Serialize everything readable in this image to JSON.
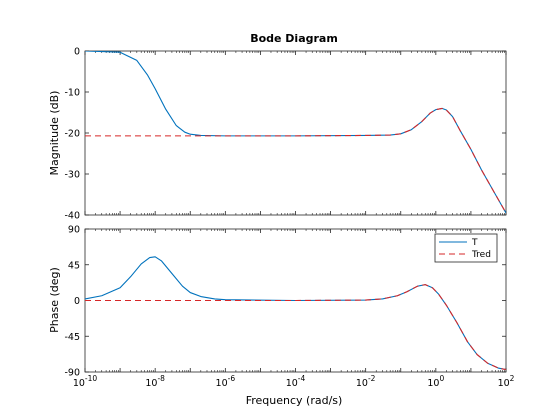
{
  "chart_data": {
    "type": "line",
    "title": "Bode Diagram",
    "xlabel": "Frequency  (rad/s)",
    "xscale": "log",
    "xlim": [
      1e-10,
      100
    ],
    "xtick_labels": [
      {
        "base": "10",
        "exp": "-10"
      },
      {
        "base": "10",
        "exp": "-8"
      },
      {
        "base": "10",
        "exp": "-6"
      },
      {
        "base": "10",
        "exp": "-4"
      },
      {
        "base": "10",
        "exp": "-2"
      },
      {
        "base": "10",
        "exp": "0"
      },
      {
        "base": "10",
        "exp": "2"
      }
    ],
    "legend": {
      "location": "top-right",
      "entries": [
        "T",
        "Tred"
      ]
    },
    "colors": {
      "T": "#0072bd",
      "Tred": "#d62728"
    },
    "panels": [
      {
        "name": "magnitude",
        "ylabel": "Magnitude (dB)",
        "ylim": [
          -40,
          0
        ],
        "yticks": [
          0,
          -10,
          -20,
          -30,
          -40
        ],
        "series": [
          {
            "name": "T",
            "style": "solid",
            "x": [
              1e-10,
              1e-09,
              3e-09,
              6e-09,
              1e-08,
              2e-08,
              4e-08,
              7e-08,
              1e-07,
              2e-07,
              1e-06,
              0.0001,
              0.01,
              0.05,
              0.1,
              0.2,
              0.4,
              0.7,
              1,
              1.5,
              2,
              3,
              5,
              10,
              20,
              50,
              100
            ],
            "y": [
              0,
              -0.3,
              -2.3,
              -5.8,
              -9.2,
              -14.2,
              -18.2,
              -19.8,
              -20.3,
              -20.6,
              -20.7,
              -20.7,
              -20.6,
              -20.5,
              -20.2,
              -19.2,
              -17.2,
              -15.1,
              -14.3,
              -14.0,
              -14.4,
              -16.0,
              -19.5,
              -24.0,
              -29.0,
              -35.0,
              -39.5
            ]
          },
          {
            "name": "Tred",
            "style": "dashed",
            "x": [
              1e-10,
              1e-08,
              1e-06,
              0.0001,
              0.01,
              0.05,
              0.1,
              0.2,
              0.4,
              0.7,
              1,
              1.5,
              2,
              3,
              5,
              10,
              20,
              50,
              100
            ],
            "y": [
              -20.7,
              -20.7,
              -20.7,
              -20.7,
              -20.6,
              -20.5,
              -20.2,
              -19.2,
              -17.2,
              -15.1,
              -14.3,
              -14.0,
              -14.4,
              -16.0,
              -19.5,
              -24.0,
              -29.0,
              -35.0,
              -39.5
            ]
          }
        ]
      },
      {
        "name": "phase",
        "ylabel": "Phase (deg)",
        "ylim": [
          -90,
          90
        ],
        "yticks": [
          90,
          45,
          0,
          -45,
          -90
        ],
        "series": [
          {
            "name": "T",
            "style": "solid",
            "x": [
              1e-10,
              3e-10,
              1e-09,
              2e-09,
              4e-09,
              7e-09,
              1e-08,
              1.5e-08,
              3e-08,
              6e-08,
              1e-07,
              2e-07,
              5e-07,
              1e-06,
              0.0001,
              0.01,
              0.03,
              0.08,
              0.15,
              0.3,
              0.5,
              0.8,
              1.2,
              2,
              4,
              8,
              15,
              30,
              60,
              100
            ],
            "y": [
              2,
              6,
              16,
              30,
              46,
              54,
              55,
              50,
              34,
              18,
              10,
              5,
              2,
              1,
              0,
              0.5,
              2,
              6,
              11,
              18,
              20,
              16,
              8,
              -6,
              -28,
              -52,
              -68,
              -79,
              -85,
              -87
            ]
          },
          {
            "name": "Tred",
            "style": "dashed",
            "x": [
              1e-10,
              1e-06,
              0.0001,
              0.01,
              0.03,
              0.08,
              0.15,
              0.3,
              0.5,
              0.8,
              1.2,
              2,
              4,
              8,
              15,
              30,
              60,
              100
            ],
            "y": [
              0,
              0,
              0,
              0.5,
              2,
              6,
              11,
              18,
              20,
              16,
              8,
              -6,
              -28,
              -52,
              -68,
              -79,
              -85,
              -87
            ]
          }
        ]
      }
    ]
  }
}
